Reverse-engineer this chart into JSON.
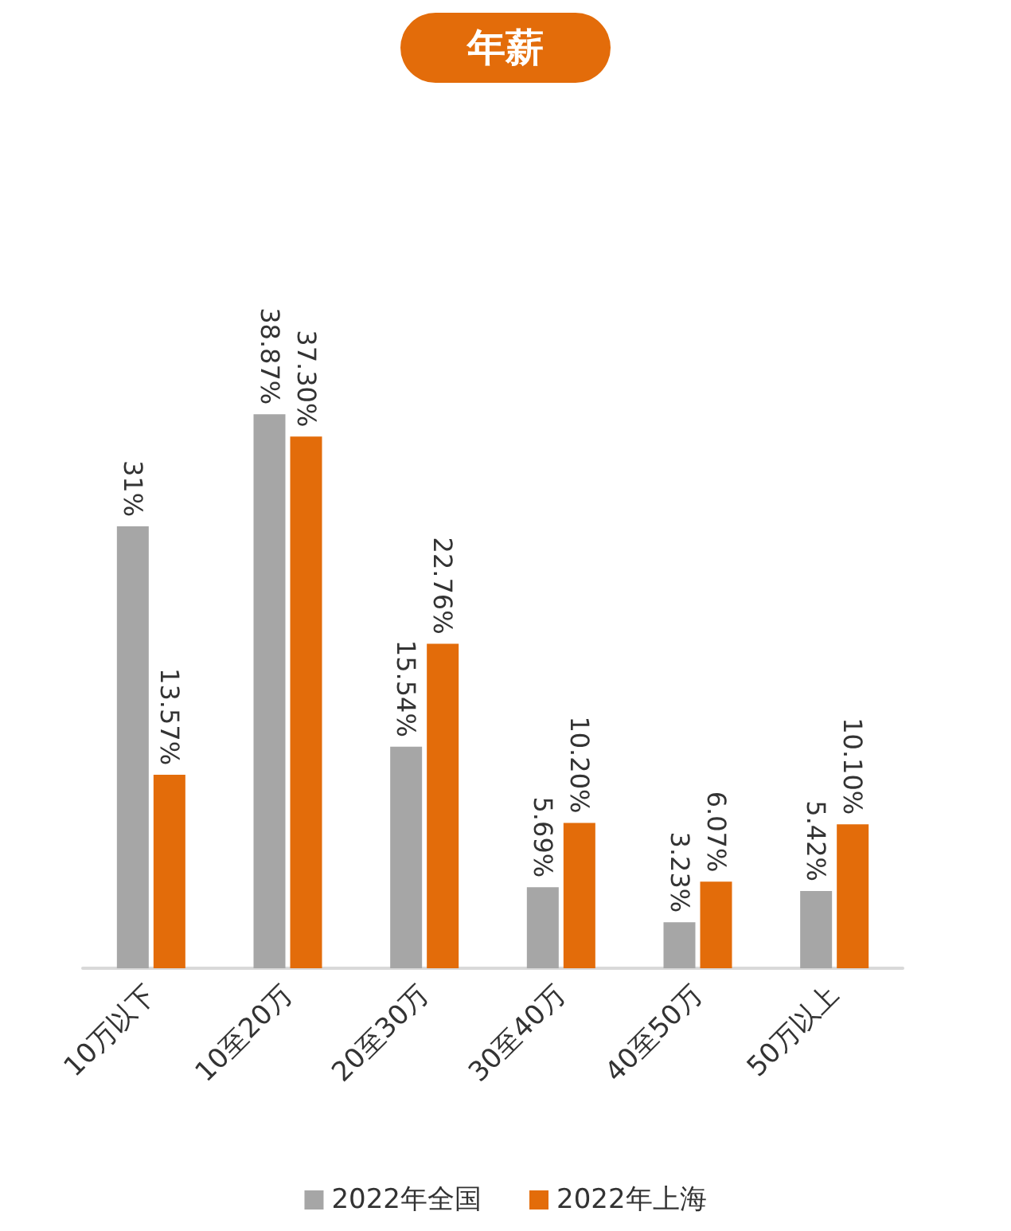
{
  "chart_data": {
    "type": "bar",
    "title": "年薪",
    "categories": [
      "10万以下",
      "10至20万",
      "20至30万",
      "30至40万",
      "40至50万",
      "50万以上"
    ],
    "series": [
      {
        "name": "2022年全国",
        "color": "#a6a6a6",
        "values": [
          31,
          38.87,
          15.54,
          5.69,
          3.23,
          5.42
        ],
        "value_labels": [
          "31%",
          "38.87%",
          "15.54%",
          "5.69%",
          "3.23%",
          "5.42%"
        ]
      },
      {
        "name": "2022年上海",
        "color": "#e36c0a",
        "values": [
          13.57,
          37.3,
          22.76,
          10.2,
          6.07,
          10.1
        ],
        "value_labels": [
          "13.57%",
          "37.30%",
          "22.76%",
          "10.20%",
          "6.07%",
          "10.10%"
        ]
      }
    ],
    "legend": "bottom",
    "grid": false
  }
}
